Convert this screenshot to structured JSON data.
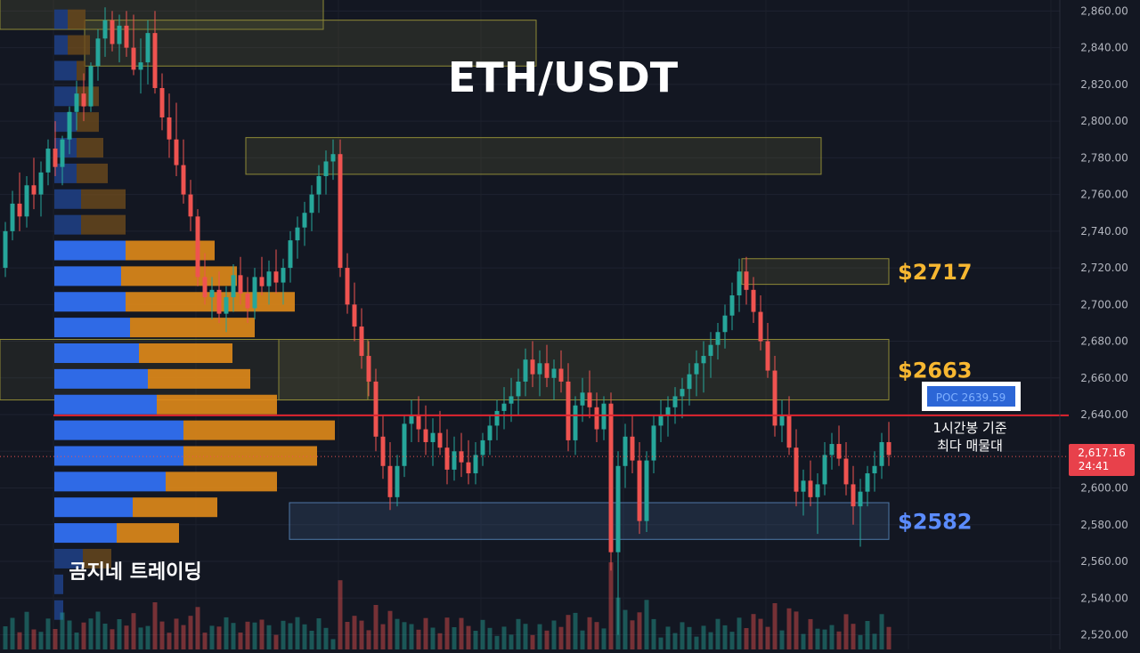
{
  "chart_data": {
    "type": "candlestick",
    "title": "ETH/USDT",
    "watermark": "곰지네 트레이딩",
    "y_axis": {
      "min": 2512,
      "max": 2866,
      "ticks": [
        "2,520.00",
        "2,540.00",
        "2,560.00",
        "2,580.00",
        "2,600.00",
        "2,620.00",
        "2,640.00",
        "2,660.00",
        "2,680.00",
        "2,700.00",
        "2,720.00",
        "2,740.00",
        "2,760.00",
        "2,780.00",
        "2,800.00",
        "2,820.00",
        "2,840.00",
        "2,860.00"
      ],
      "tick_values": [
        2520,
        2540,
        2560,
        2580,
        2600,
        2620,
        2640,
        2660,
        2680,
        2700,
        2720,
        2740,
        2760,
        2780,
        2800,
        2820,
        2840,
        2860
      ]
    },
    "current_price": {
      "value": 2617.16,
      "label": "2,617.16",
      "countdown": "24:41"
    },
    "poc": {
      "value": 2639.59,
      "label": "POC  2639.59",
      "note_line1": "1시간봉 기준",
      "note_line2": "최다 매물대"
    },
    "levels": [
      {
        "label": "$2717",
        "low": 2711,
        "high": 2725,
        "color": "#f7b731"
      },
      {
        "label": "$2663",
        "low": 2648,
        "high": 2681,
        "color": "#f7b731"
      },
      {
        "label": "$2582",
        "low": 2572,
        "high": 2592,
        "color": "#5b8cff"
      }
    ],
    "zones": [
      {
        "low": 2850,
        "high": 2875,
        "kind": "supply"
      },
      {
        "low": 2830,
        "high": 2855,
        "kind": "supply"
      },
      {
        "low": 2771,
        "high": 2791,
        "kind": "supply"
      },
      {
        "low": 2711,
        "high": 2725,
        "kind": "supply"
      },
      {
        "low": 2648,
        "high": 2681,
        "kind": "supply"
      },
      {
        "low": 2648,
        "high": 2681,
        "kind": "blue"
      },
      {
        "low": 2572,
        "high": 2592,
        "kind": "demand"
      }
    ],
    "volume_profile": [
      {
        "price": 2855,
        "up": 15,
        "down": 20
      },
      {
        "price": 2841,
        "up": 15,
        "down": 25
      },
      {
        "price": 2827,
        "up": 25,
        "down": 10
      },
      {
        "price": 2813,
        "up": 25,
        "down": 25
      },
      {
        "price": 2799,
        "up": 25,
        "down": 25
      },
      {
        "price": 2785,
        "up": 25,
        "down": 30
      },
      {
        "price": 2771,
        "up": 25,
        "down": 35
      },
      {
        "price": 2757,
        "up": 30,
        "down": 50
      },
      {
        "price": 2743,
        "up": 30,
        "down": 50
      },
      {
        "price": 2729,
        "up": 80,
        "down": 100
      },
      {
        "price": 2715,
        "up": 75,
        "down": 130
      },
      {
        "price": 2701,
        "up": 80,
        "down": 190
      },
      {
        "price": 2687,
        "up": 85,
        "down": 140
      },
      {
        "price": 2673,
        "up": 95,
        "down": 105
      },
      {
        "price": 2659,
        "up": 105,
        "down": 115
      },
      {
        "price": 2645,
        "up": 115,
        "down": 135
      },
      {
        "price": 2631,
        "up": 145,
        "down": 170
      },
      {
        "price": 2617,
        "up": 145,
        "down": 150
      },
      {
        "price": 2603,
        "up": 125,
        "down": 125
      },
      {
        "price": 2589,
        "up": 88,
        "down": 95
      },
      {
        "price": 2575,
        "up": 70,
        "down": 70
      },
      {
        "price": 2561,
        "up": 32,
        "down": 32
      },
      {
        "price": 2547,
        "up": 10,
        "down": 0
      },
      {
        "price": 2533,
        "up": 10,
        "down": 0
      }
    ],
    "candles": [
      [
        2720,
        2745,
        2715,
        2740
      ],
      [
        2740,
        2762,
        2735,
        2755
      ],
      [
        2755,
        2772,
        2740,
        2748
      ],
      [
        2748,
        2770,
        2742,
        2765
      ],
      [
        2765,
        2780,
        2752,
        2760
      ],
      [
        2760,
        2778,
        2748,
        2772
      ],
      [
        2772,
        2790,
        2765,
        2785
      ],
      [
        2785,
        2800,
        2770,
        2775
      ],
      [
        2775,
        2792,
        2765,
        2790
      ],
      [
        2790,
        2808,
        2782,
        2805
      ],
      [
        2805,
        2822,
        2795,
        2815
      ],
      [
        2815,
        2826,
        2800,
        2808
      ],
      [
        2808,
        2832,
        2805,
        2830
      ],
      [
        2830,
        2850,
        2822,
        2845
      ],
      [
        2845,
        2862,
        2835,
        2855
      ],
      [
        2855,
        2860,
        2838,
        2842
      ],
      [
        2842,
        2858,
        2832,
        2852
      ],
      [
        2852,
        2860,
        2835,
        2840
      ],
      [
        2840,
        2858,
        2825,
        2828
      ],
      [
        2828,
        2845,
        2815,
        2832
      ],
      [
        2832,
        2855,
        2820,
        2848
      ],
      [
        2848,
        2860,
        2815,
        2818
      ],
      [
        2818,
        2826,
        2795,
        2802
      ],
      [
        2802,
        2815,
        2780,
        2790
      ],
      [
        2790,
        2810,
        2770,
        2776
      ],
      [
        2776,
        2790,
        2755,
        2760
      ],
      [
        2760,
        2768,
        2740,
        2748
      ],
      [
        2748,
        2752,
        2710,
        2715
      ],
      [
        2715,
        2728,
        2700,
        2704
      ],
      [
        2704,
        2715,
        2692,
        2708
      ],
      [
        2708,
        2718,
        2690,
        2695
      ],
      [
        2695,
        2710,
        2685,
        2704
      ],
      [
        2704,
        2722,
        2696,
        2716
      ],
      [
        2716,
        2726,
        2700,
        2706
      ],
      [
        2706,
        2715,
        2690,
        2698
      ],
      [
        2698,
        2720,
        2692,
        2715
      ],
      [
        2715,
        2726,
        2705,
        2710
      ],
      [
        2710,
        2724,
        2700,
        2718
      ],
      [
        2718,
        2730,
        2706,
        2712
      ],
      [
        2712,
        2725,
        2700,
        2720
      ],
      [
        2720,
        2740,
        2712,
        2735
      ],
      [
        2735,
        2748,
        2725,
        2742
      ],
      [
        2742,
        2756,
        2732,
        2750
      ],
      [
        2750,
        2765,
        2740,
        2760
      ],
      [
        2760,
        2776,
        2750,
        2770
      ],
      [
        2770,
        2784,
        2760,
        2778
      ],
      [
        2778,
        2790,
        2768,
        2782
      ],
      [
        2782,
        2790,
        2715,
        2720
      ],
      [
        2720,
        2728,
        2695,
        2700
      ],
      [
        2700,
        2712,
        2680,
        2688
      ],
      [
        2688,
        2698,
        2665,
        2672
      ],
      [
        2672,
        2680,
        2650,
        2658
      ],
      [
        2658,
        2665,
        2620,
        2628
      ],
      [
        2628,
        2640,
        2605,
        2612
      ],
      [
        2612,
        2625,
        2588,
        2595
      ],
      [
        2595,
        2618,
        2590,
        2612
      ],
      [
        2612,
        2640,
        2606,
        2635
      ],
      [
        2635,
        2648,
        2625,
        2640
      ],
      [
        2640,
        2650,
        2625,
        2632
      ],
      [
        2632,
        2645,
        2618,
        2625
      ],
      [
        2625,
        2638,
        2612,
        2630
      ],
      [
        2630,
        2642,
        2618,
        2622
      ],
      [
        2622,
        2632,
        2602,
        2610
      ],
      [
        2610,
        2628,
        2604,
        2620
      ],
      [
        2620,
        2630,
        2606,
        2614
      ],
      [
        2614,
        2626,
        2602,
        2608
      ],
      [
        2608,
        2625,
        2602,
        2618
      ],
      [
        2618,
        2630,
        2612,
        2626
      ],
      [
        2626,
        2640,
        2618,
        2634
      ],
      [
        2634,
        2648,
        2626,
        2642
      ],
      [
        2642,
        2655,
        2632,
        2646
      ],
      [
        2646,
        2660,
        2636,
        2650
      ],
      [
        2650,
        2665,
        2640,
        2658
      ],
      [
        2658,
        2676,
        2650,
        2670
      ],
      [
        2670,
        2680,
        2655,
        2662
      ],
      [
        2662,
        2675,
        2650,
        2668
      ],
      [
        2668,
        2678,
        2655,
        2660
      ],
      [
        2660,
        2670,
        2648,
        2665
      ],
      [
        2665,
        2675,
        2652,
        2658
      ],
      [
        2658,
        2668,
        2620,
        2626
      ],
      [
        2626,
        2650,
        2618,
        2645
      ],
      [
        2645,
        2660,
        2636,
        2652
      ],
      [
        2652,
        2664,
        2638,
        2644
      ],
      [
        2644,
        2652,
        2625,
        2632
      ],
      [
        2632,
        2650,
        2626,
        2646
      ],
      [
        2646,
        2652,
        2555,
        2565
      ],
      [
        2565,
        2620,
        2520,
        2612
      ],
      [
        2612,
        2635,
        2600,
        2628
      ],
      [
        2628,
        2640,
        2608,
        2615
      ],
      [
        2615,
        2625,
        2575,
        2582
      ],
      [
        2582,
        2620,
        2576,
        2615
      ],
      [
        2615,
        2640,
        2608,
        2634
      ],
      [
        2634,
        2648,
        2625,
        2640
      ],
      [
        2640,
        2650,
        2628,
        2644
      ],
      [
        2644,
        2655,
        2635,
        2650
      ],
      [
        2650,
        2660,
        2638,
        2654
      ],
      [
        2654,
        2668,
        2645,
        2662
      ],
      [
        2662,
        2675,
        2650,
        2668
      ],
      [
        2668,
        2680,
        2652,
        2672
      ],
      [
        2672,
        2685,
        2660,
        2678
      ],
      [
        2678,
        2690,
        2670,
        2685
      ],
      [
        2685,
        2700,
        2676,
        2694
      ],
      [
        2694,
        2712,
        2686,
        2705
      ],
      [
        2705,
        2725,
        2696,
        2718
      ],
      [
        2718,
        2726,
        2700,
        2708
      ],
      [
        2708,
        2715,
        2690,
        2696
      ],
      [
        2696,
        2705,
        2675,
        2680
      ],
      [
        2680,
        2690,
        2660,
        2664
      ],
      [
        2664,
        2672,
        2628,
        2634
      ],
      [
        2634,
        2648,
        2625,
        2640
      ],
      [
        2640,
        2650,
        2618,
        2622
      ],
      [
        2622,
        2632,
        2590,
        2598
      ],
      [
        2598,
        2610,
        2585,
        2604
      ],
      [
        2604,
        2615,
        2590,
        2595
      ],
      [
        2595,
        2608,
        2575,
        2602
      ],
      [
        2602,
        2625,
        2596,
        2618
      ],
      [
        2618,
        2630,
        2610,
        2624
      ],
      [
        2624,
        2634,
        2612,
        2616
      ],
      [
        2616,
        2625,
        2596,
        2602
      ],
      [
        2602,
        2612,
        2580,
        2590
      ],
      [
        2590,
        2605,
        2568,
        2598
      ],
      [
        2598,
        2612,
        2590,
        2608
      ],
      [
        2608,
        2620,
        2598,
        2612
      ],
      [
        2612,
        2630,
        2605,
        2625
      ],
      [
        2625,
        2636,
        2612,
        2618
      ]
    ]
  }
}
